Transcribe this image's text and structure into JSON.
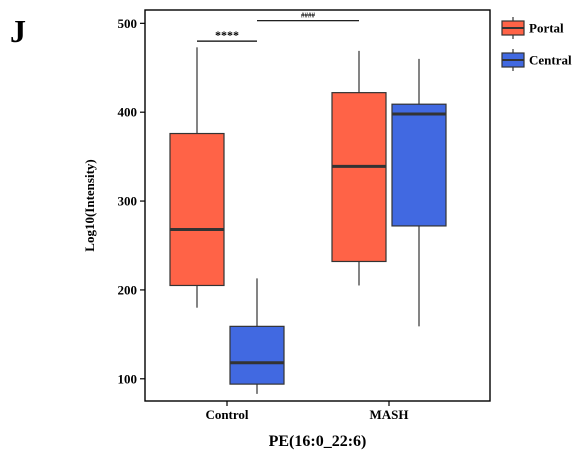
{
  "panel_label": "J",
  "chart_data": {
    "type": "box",
    "xlabel": "PE(16:0_22:6)",
    "ylabel": "Log10(Intensity)",
    "categories": [
      "Control",
      "MASH"
    ],
    "ylim": [
      75,
      515
    ],
    "yticks": [
      100,
      200,
      300,
      400,
      500
    ],
    "grid": false,
    "legend_position": "right",
    "series": [
      {
        "name": "Portal",
        "color": "#FF6347",
        "boxes": [
          {
            "category": "Control",
            "min": 180,
            "q1": 205,
            "median": 268,
            "q3": 376,
            "max": 473
          },
          {
            "category": "MASH",
            "min": 205,
            "q1": 232,
            "median": 339,
            "q3": 422,
            "max": 469
          }
        ]
      },
      {
        "name": "Central",
        "color": "#4169E1",
        "boxes": [
          {
            "category": "Control",
            "min": 83,
            "q1": 94,
            "median": 118,
            "q3": 159,
            "max": 213
          },
          {
            "category": "MASH",
            "min": 159,
            "q1": 272,
            "median": 398,
            "q3": 409,
            "max": 460
          }
        ]
      }
    ],
    "annotations": [
      {
        "label": "****",
        "between": [
          "Control Portal",
          "Control Central"
        ],
        "y": 480
      },
      {
        "label": "####",
        "between": [
          "Control Central",
          "MASH Portal"
        ],
        "y": 503
      }
    ]
  }
}
